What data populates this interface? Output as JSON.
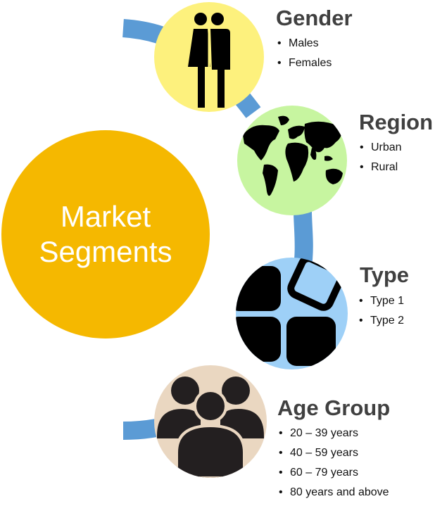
{
  "center": {
    "line1": "Market",
    "line2": "Segments",
    "color": "#f5b800"
  },
  "connector_color": "#5b9bd5",
  "segments": [
    {
      "title": "Gender",
      "icon": "gender-icon",
      "bg": "#fdf17d",
      "items": [
        "Males",
        "Females"
      ]
    },
    {
      "title": "Region",
      "icon": "world-map-icon",
      "bg": "#c7f5a0",
      "items": [
        "Urban",
        "Rural"
      ]
    },
    {
      "title": "Type",
      "icon": "tiles-icon",
      "bg": "#9ed0f7",
      "items": [
        "Type 1",
        "Type 2"
      ]
    },
    {
      "title": "Age Group",
      "icon": "group-people-icon",
      "bg": "#ead7c1",
      "items": [
        "20 – 39 years",
        "40 – 59 years",
        "60 – 79 years",
        "80 years and above"
      ]
    }
  ]
}
